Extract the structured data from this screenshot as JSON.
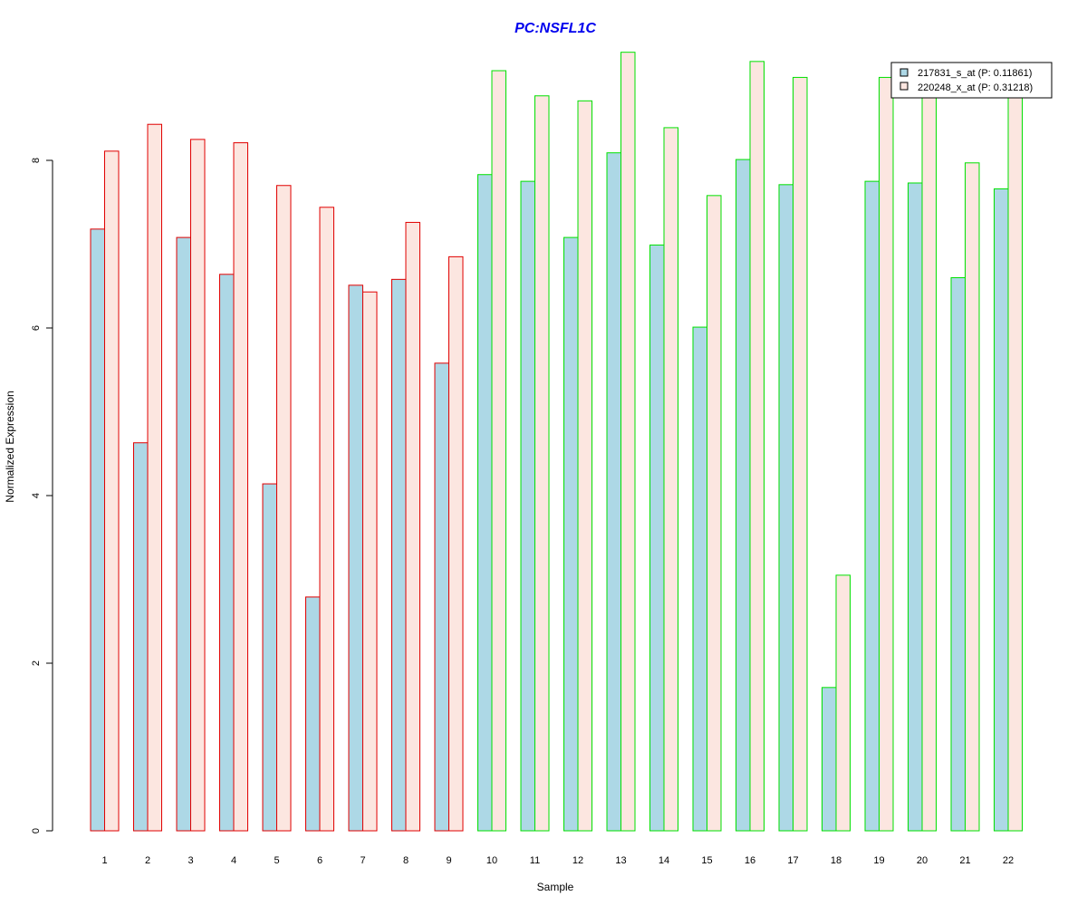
{
  "chart_data": {
    "type": "bar",
    "title": "PC:NSFL1C",
    "xlabel": "Sample",
    "ylabel": "Normalized Expression",
    "ylim": [
      0,
      9.3
    ],
    "yticks": [
      0,
      2,
      4,
      6,
      8
    ],
    "categories": [
      "1",
      "2",
      "3",
      "4",
      "5",
      "6",
      "7",
      "8",
      "9",
      "10",
      "11",
      "12",
      "13",
      "14",
      "15",
      "16",
      "17",
      "18",
      "19",
      "20",
      "21",
      "22"
    ],
    "series": [
      {
        "name": "217831_s_at (P: 0.11861)",
        "fill": "#add8e6",
        "values": [
          7.18,
          4.63,
          7.08,
          6.64,
          4.14,
          2.79,
          6.51,
          6.58,
          5.58,
          7.83,
          7.75,
          7.08,
          8.09,
          6.99,
          6.01,
          8.01,
          7.71,
          1.71,
          7.75,
          7.73,
          6.6,
          7.66
        ]
      },
      {
        "name": "220248_x_at (P: 0.31218)",
        "fill": "#fce6e0",
        "values": [
          8.11,
          8.43,
          8.25,
          8.21,
          7.7,
          7.44,
          6.43,
          7.26,
          6.85,
          9.07,
          8.77,
          8.71,
          9.29,
          8.39,
          7.58,
          9.18,
          8.99,
          3.05,
          8.99,
          8.97,
          7.97,
          8.83
        ]
      }
    ],
    "group_outline": [
      "#e00000",
      "#e00000",
      "#e00000",
      "#e00000",
      "#e00000",
      "#e00000",
      "#e00000",
      "#e00000",
      "#e00000",
      "#00e000",
      "#00e000",
      "#00e000",
      "#00e000",
      "#00e000",
      "#00e000",
      "#00e000",
      "#00e000",
      "#00e000",
      "#00e000",
      "#00e000",
      "#00e000",
      "#00e000"
    ],
    "legend_position": "top-right",
    "grid": false
  }
}
